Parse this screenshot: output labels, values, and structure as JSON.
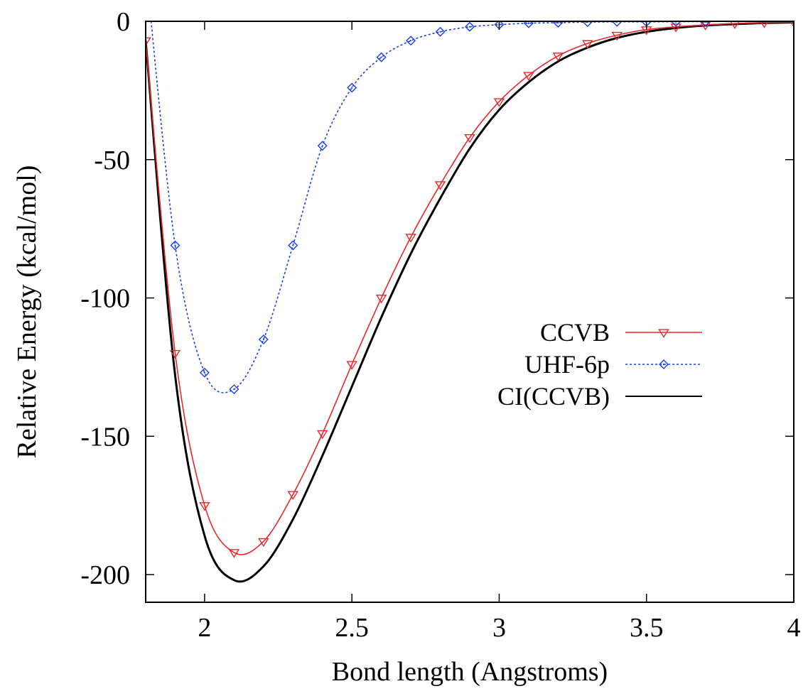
{
  "chart_data": {
    "type": "line",
    "title": "",
    "xlabel": "Bond length (Angstroms)",
    "ylabel": "Relative Energy (kcal/mol)",
    "xlim": [
      1.8,
      4.0
    ],
    "ylim": [
      -210,
      0
    ],
    "xticks": [
      2,
      2.5,
      3,
      3.5,
      4
    ],
    "xtick_labels": [
      "2",
      "2.5",
      "3",
      "3.5",
      "4"
    ],
    "yticks": [
      0,
      -50,
      -100,
      -150,
      -200
    ],
    "ytick_labels": [
      "0",
      "-50",
      "-100",
      "-150",
      "-200"
    ],
    "grid": false,
    "legend_position": "right",
    "series": [
      {
        "name": "CCVB",
        "color": "#e8262b",
        "line_style": "solid",
        "marker": "triangle-down",
        "x": [
          1.8,
          1.9,
          2.0,
          2.1,
          2.2,
          2.3,
          2.4,
          2.5,
          2.6,
          2.7,
          2.8,
          2.9,
          3.0,
          3.1,
          3.2,
          3.3,
          3.4,
          3.5,
          3.6,
          3.7,
          3.8,
          3.9,
          4.0
        ],
        "y": [
          -7,
          -120,
          -175,
          -192,
          -188,
          -171,
          -149,
          -124,
          -100,
          -78,
          -59,
          -42,
          -29,
          -19.5,
          -12.5,
          -8,
          -5,
          -3,
          -2,
          -1.3,
          -0.8,
          -0.5,
          -0.3
        ]
      },
      {
        "name": "UHF-6p",
        "color": "#1a3ee8",
        "line_style": "dotted",
        "marker": "diamond",
        "x": [
          1.8,
          1.9,
          2.0,
          2.1,
          2.2,
          2.3,
          2.4,
          2.5,
          2.6,
          2.7,
          2.8,
          2.9,
          3.0,
          3.1,
          3.2,
          3.3,
          3.4,
          3.5,
          3.6,
          3.7
        ],
        "y": [
          20,
          -81,
          -127,
          -133,
          -115,
          -81,
          -45,
          -24,
          -13,
          -7,
          -3.8,
          -2,
          -1.2,
          -0.7,
          -0.5,
          -0.3,
          -0.2,
          -0.2,
          -0.15,
          -0.1
        ]
      },
      {
        "name": "CI(CCVB)",
        "color": "#000000",
        "line_style": "solid",
        "marker": "none",
        "x": [
          1.8,
          1.9,
          2.0,
          2.1,
          2.2,
          2.3,
          2.4,
          2.5,
          2.6,
          2.7,
          2.8,
          2.9,
          3.0,
          3.1,
          3.2,
          3.3,
          3.4,
          3.5,
          3.6,
          3.7,
          3.8,
          3.9,
          4.0
        ],
        "y": [
          -7,
          -128,
          -186,
          -202,
          -197,
          -180,
          -157,
          -132,
          -107,
          -84,
          -64,
          -46,
          -32,
          -22,
          -14.5,
          -9.5,
          -6,
          -3.8,
          -2.4,
          -1.5,
          -1.0,
          -0.6,
          -0.4
        ]
      }
    ]
  }
}
